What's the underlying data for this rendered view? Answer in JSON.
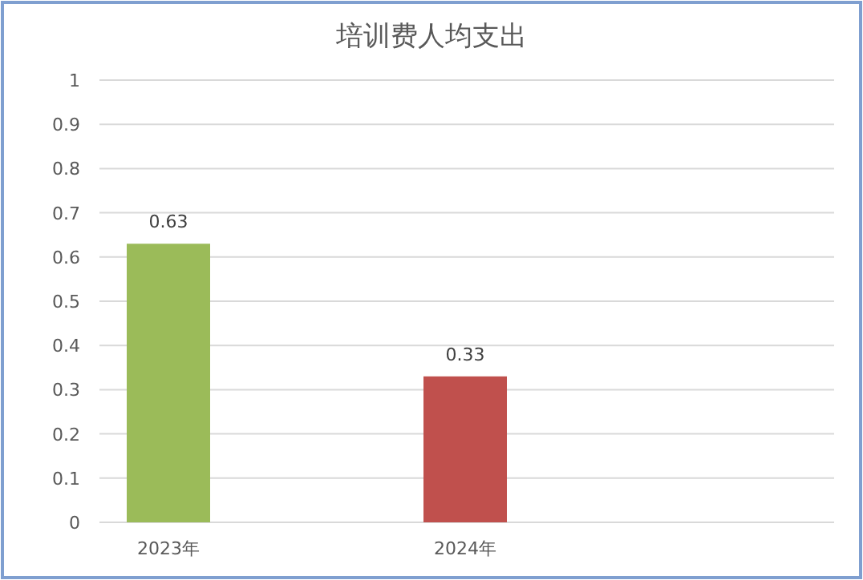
{
  "chart_data": {
    "type": "bar",
    "title": "培训费人均支出",
    "categories": [
      "2023年",
      "2024年"
    ],
    "values": [
      0.63,
      0.33
    ],
    "colors": [
      "#9bbb59",
      "#c0504d"
    ],
    "ylim": [
      0,
      1
    ],
    "yticks": [
      0,
      0.1,
      0.2,
      0.3,
      0.4,
      0.5,
      0.6,
      0.7,
      0.8,
      0.9,
      1
    ],
    "grid": "y",
    "data_labels": true
  }
}
